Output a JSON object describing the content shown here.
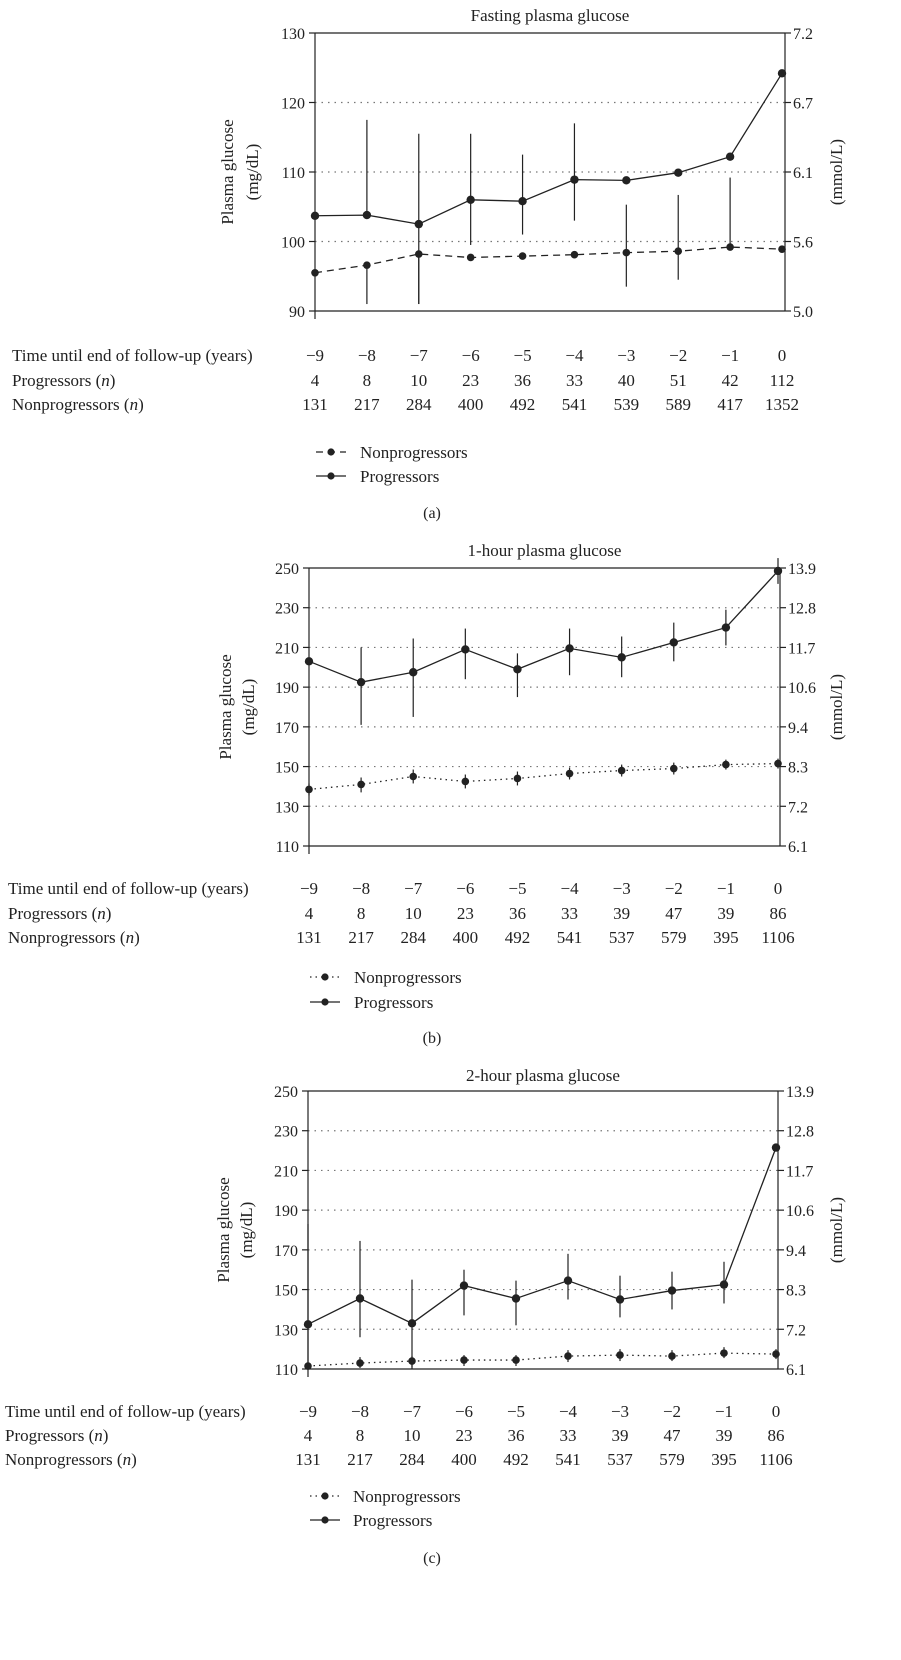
{
  "rows": {
    "time_label": "Time until end of follow-up (years)",
    "progressors_label": "Progressors",
    "nonprogressors_label": "Nonprogressors",
    "n_label": "n",
    "times": [
      "−9",
      "−8",
      "−7",
      "−6",
      "−5",
      "−4",
      "−3",
      "−2",
      "−1",
      "0"
    ]
  },
  "legend": {
    "nonprogressors": "Nonprogressors",
    "progressors": "Progressors"
  },
  "chart_data": [
    {
      "id": "a",
      "type": "line",
      "panel_label": "(a)",
      "title": "Fasting plasma glucose",
      "ylabel_left": [
        "Plasma glucose",
        "(mg/dL)"
      ],
      "ylabel_right": "(mmol/L)",
      "ylim": [
        90,
        130
      ],
      "yticks_left": [
        "130",
        "120",
        "110",
        "100",
        "90"
      ],
      "yticks_left_values": [
        130,
        120,
        110,
        100,
        90
      ],
      "yticks_right": [
        "7.2",
        "6.7",
        "6.1",
        "5.6",
        "5.0"
      ],
      "gridlines": [
        120,
        110,
        100
      ],
      "x": [
        -9,
        -8,
        -7,
        -6,
        -5,
        -4,
        -3,
        -2,
        -1,
        0
      ],
      "nonprog_style": "dashed",
      "series": [
        {
          "name": "Progressors",
          "values": [
            103.7,
            103.8,
            102.5,
            106.0,
            105.8,
            108.9,
            108.8,
            109.9,
            112.2,
            124.2
          ],
          "err_low": [
            103.7,
            103.8,
            91.0,
            99.5,
            101.0,
            103.0,
            108.8,
            109.9,
            112.2,
            124.2
          ],
          "err_high": [
            103.7,
            117.5,
            115.5,
            115.5,
            112.5,
            117.0,
            108.8,
            109.9,
            112.2,
            124.2
          ]
        },
        {
          "name": "Nonprogressors",
          "values": [
            95.5,
            96.6,
            98.2,
            97.7,
            97.9,
            98.1,
            98.4,
            98.6,
            99.2,
            98.9
          ],
          "err_low": [
            95.5,
            91.0,
            91.0,
            97.7,
            97.9,
            98.1,
            93.5,
            94.5,
            99.2,
            98.9
          ],
          "err_high": [
            95.5,
            96.6,
            98.2,
            97.7,
            97.9,
            98.1,
            105.3,
            106.7,
            109.2,
            98.9
          ]
        }
      ],
      "progressors_n": [
        "4",
        "8",
        "10",
        "23",
        "36",
        "33",
        "40",
        "51",
        "42",
        "112"
      ],
      "nonprogressors_n": [
        "131",
        "217",
        "284",
        "400",
        "492",
        "541",
        "539",
        "589",
        "417",
        "1352"
      ]
    },
    {
      "id": "b",
      "type": "line",
      "panel_label": "(b)",
      "title": "1-hour plasma glucose",
      "ylabel_left": [
        "Plasma glucose",
        "(mg/dL)"
      ],
      "ylabel_right": "(mmol/L)",
      "ylim": [
        110,
        250
      ],
      "yticks_left": [
        "250",
        "230",
        "210",
        "190",
        "170",
        "150",
        "130",
        "110"
      ],
      "yticks_left_values": [
        250,
        230,
        210,
        190,
        170,
        150,
        130,
        110
      ],
      "yticks_right": [
        "13.9",
        "12.8",
        "11.7",
        "10.6",
        "9.4",
        "8.3",
        "7.2",
        "6.1"
      ],
      "gridlines": [
        230,
        210,
        190,
        170,
        150,
        130
      ],
      "x": [
        -9,
        -8,
        -7,
        -6,
        -5,
        -4,
        -3,
        -2,
        -1,
        0
      ],
      "nonprog_style": "dotted",
      "series": [
        {
          "name": "Progressors",
          "values": [
            203,
            192.5,
            197.5,
            209,
            199,
            209.5,
            205,
            212.5,
            220,
            248.5
          ],
          "err_low": [
            203,
            171,
            175,
            194,
            185,
            196,
            195,
            203,
            211,
            242
          ],
          "err_high": [
            203,
            210,
            214.5,
            219.5,
            207,
            219.5,
            215.5,
            222.5,
            229,
            255
          ]
        },
        {
          "name": "Nonprogressors",
          "values": [
            138.5,
            141,
            145,
            142.5,
            144,
            146.5,
            148,
            149,
            151,
            151.5
          ],
          "err_low": [
            135.5,
            137,
            141.5,
            139,
            140.5,
            143.5,
            145,
            146,
            148.5,
            149
          ],
          "err_high": [
            141.5,
            144.5,
            148.5,
            146,
            147.5,
            149.5,
            151,
            152,
            153.5,
            154
          ]
        }
      ],
      "progressors_n": [
        "4",
        "8",
        "10",
        "23",
        "36",
        "33",
        "39",
        "47",
        "39",
        "86"
      ],
      "nonprogressors_n": [
        "131",
        "217",
        "284",
        "400",
        "492",
        "541",
        "537",
        "579",
        "395",
        "1106"
      ]
    },
    {
      "id": "c",
      "type": "line",
      "panel_label": "(c)",
      "title": "2-hour plasma glucose",
      "ylabel_left": [
        "Plasma glucose",
        "(mg/dL)"
      ],
      "ylabel_right": "(mmol/L)",
      "ylim": [
        110,
        250
      ],
      "yticks_left": [
        "250",
        "230",
        "210",
        "190",
        "170",
        "150",
        "130",
        "110"
      ],
      "yticks_left_values": [
        250,
        230,
        210,
        190,
        170,
        150,
        130,
        110
      ],
      "yticks_right": [
        "13.9",
        "12.8",
        "11.7",
        "10.6",
        "9.4",
        "8.3",
        "7.2",
        "6.1"
      ],
      "gridlines": [
        230,
        210,
        190,
        170,
        150,
        130
      ],
      "x": [
        -9,
        -8,
        -7,
        -6,
        -5,
        -4,
        -3,
        -2,
        -1,
        0
      ],
      "nonprog_style": "dotted",
      "series": [
        {
          "name": "Progressors",
          "values": [
            132.5,
            145.5,
            133,
            152,
            145.5,
            154.5,
            145,
            149.5,
            152.5,
            221.5
          ],
          "err_low": [
            110,
            126,
            110,
            137,
            132,
            145,
            136,
            140,
            143,
            221.5
          ],
          "err_high": [
            183,
            174.5,
            155,
            160,
            154.5,
            168,
            157,
            159,
            164,
            221.5
          ]
        },
        {
          "name": "Nonprogressors",
          "values": [
            111.5,
            113,
            114,
            114.5,
            114.5,
            116.5,
            117,
            116.5,
            118,
            117.5
          ],
          "err_low": [
            110,
            110.5,
            111,
            111.5,
            111.5,
            113.5,
            114,
            114,
            115.5,
            115
          ],
          "err_high": [
            113,
            116,
            116.5,
            117,
            117,
            119.5,
            120,
            119.5,
            121,
            120
          ]
        }
      ],
      "progressors_n": [
        "4",
        "8",
        "10",
        "23",
        "36",
        "33",
        "39",
        "47",
        "39",
        "86"
      ],
      "nonprogressors_n": [
        "131",
        "217",
        "284",
        "400",
        "492",
        "541",
        "537",
        "579",
        "395",
        "1106"
      ]
    }
  ]
}
